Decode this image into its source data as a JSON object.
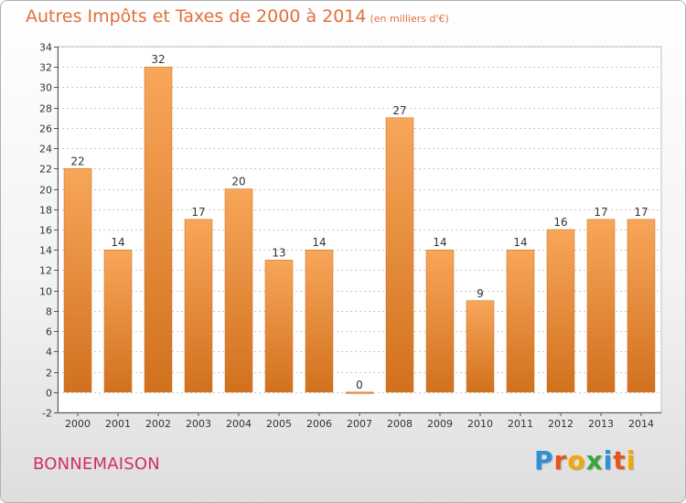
{
  "header": {
    "title": "Autres Impôts et Taxes de 2000 à 2014",
    "unit": "(en milliers d'€)"
  },
  "footer": {
    "city": "BONNEMAISON",
    "logo": {
      "letters": [
        "P",
        "r",
        "o",
        "x",
        "i",
        "t",
        "i"
      ],
      "colors": [
        "#2e8fd6",
        "#e8541e",
        "#f5a800",
        "#3aa63a",
        "#2e8fd6",
        "#e8541e",
        "#f5a800"
      ]
    }
  },
  "colors": {
    "bar_top": "#f8a65a",
    "bar_bottom": "#d1711e",
    "title": "#e0703a",
    "city": "#d02f63"
  },
  "chart_data": {
    "type": "bar",
    "categories": [
      "2000",
      "2001",
      "2002",
      "2003",
      "2004",
      "2005",
      "2006",
      "2007",
      "2008",
      "2009",
      "2010",
      "2011",
      "2012",
      "2013",
      "2014"
    ],
    "values": [
      22,
      14,
      32,
      17,
      20,
      13,
      14,
      0,
      27,
      14,
      9,
      14,
      16,
      17,
      17
    ],
    "data_labels": [
      "22",
      "14",
      "32",
      "17",
      "20",
      "13",
      "14",
      "0",
      "27",
      "14",
      "9",
      "14",
      "16",
      "17",
      "17"
    ],
    "title": "Autres Impôts et Taxes de 2000 à 2014",
    "ylim": [
      -2,
      34
    ],
    "yticks": [
      -2,
      0,
      2,
      4,
      6,
      8,
      10,
      12,
      14,
      16,
      18,
      20,
      22,
      24,
      26,
      28,
      30,
      32,
      34
    ],
    "grid": "horizontal"
  }
}
